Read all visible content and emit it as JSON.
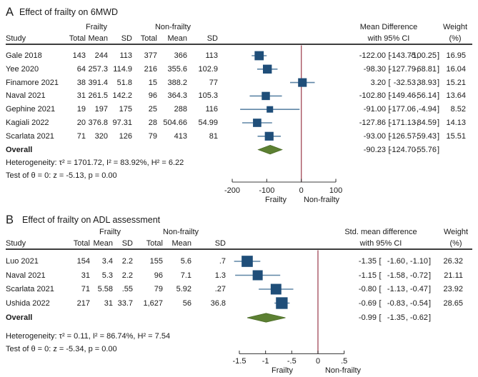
{
  "chart_data": [
    {
      "type": "forest",
      "panel_label": "A",
      "title": "Effect of frailty on 6MWD",
      "group_headers": [
        "Frailty",
        "Non-frailty"
      ],
      "columns": {
        "study": "Study",
        "total": "Total",
        "mean": "Mean",
        "sd": "SD"
      },
      "effect_header": [
        "Mean Difference",
        "with 95% CI"
      ],
      "weight_header": [
        "Weight",
        "(%)"
      ],
      "studies": [
        {
          "name": "Gale 2018",
          "g1": [
            "143",
            "244",
            "113"
          ],
          "g2": [
            "377",
            "366",
            "113"
          ],
          "effect": -122.0,
          "ci": [
            -143.75,
            -100.25
          ],
          "est": "-122.00",
          "lo": "-143.75",
          "hi": "-100.25",
          "weight": 16.95,
          "weight_text": "16.95"
        },
        {
          "name": "Yee 2020",
          "g1": [
            "64",
            "257.3",
            "114.9"
          ],
          "g2": [
            "216",
            "355.6",
            "102.9"
          ],
          "effect": -98.3,
          "ci": [
            -127.79,
            -68.81
          ],
          "est": "-98.30",
          "lo": "-127.79",
          "hi": "-68.81",
          "weight": 16.04,
          "weight_text": "16.04"
        },
        {
          "name": "Finamore 2021",
          "g1": [
            "38",
            "391.4",
            "51.8"
          ],
          "g2": [
            "15",
            "388.2",
            "77"
          ],
          "effect": 3.2,
          "ci": [
            -32.53,
            38.93
          ],
          "est": "3.20",
          "lo": "-32.53",
          "hi": "38.93",
          "weight": 15.21,
          "weight_text": "15.21"
        },
        {
          "name": "Naval 2021",
          "g1": [
            "31",
            "261.5",
            "142.2"
          ],
          "g2": [
            "96",
            "364.3",
            "105.3"
          ],
          "effect": -102.8,
          "ci": [
            -149.46,
            -56.14
          ],
          "est": "-102.80",
          "lo": "-149.46",
          "hi": "-56.14",
          "weight": 13.64,
          "weight_text": "13.64"
        },
        {
          "name": "Gephine 2021",
          "g1": [
            "19",
            "197",
            "175"
          ],
          "g2": [
            "25",
            "288",
            "116"
          ],
          "effect": -91.0,
          "ci": [
            -177.06,
            -4.94
          ],
          "est": "-91.00",
          "lo": "-177.06",
          "hi": "-4.94",
          "weight": 8.52,
          "weight_text": "8.52"
        },
        {
          "name": "Kagiali 2022",
          "g1": [
            "20",
            "376.8",
            "97.31"
          ],
          "g2": [
            "28",
            "504.66",
            "54.99"
          ],
          "effect": -127.86,
          "ci": [
            -171.13,
            -84.59
          ],
          "est": "-127.86",
          "lo": "-171.13",
          "hi": "-84.59",
          "weight": 14.13,
          "weight_text": "14.13"
        },
        {
          "name": "Scarlata 2021",
          "g1": [
            "71",
            "320",
            "126"
          ],
          "g2": [
            "79",
            "413",
            "81"
          ],
          "effect": -93.0,
          "ci": [
            -126.57,
            -59.43
          ],
          "est": "-93.00",
          "lo": "-126.57",
          "hi": "-59.43",
          "weight": 15.51,
          "weight_text": "15.51"
        }
      ],
      "overall": {
        "label": "Overall",
        "effect": -90.23,
        "ci": [
          -124.7,
          -55.76
        ],
        "est": "-90.23",
        "lo": "-124.70",
        "hi": "-55.76"
      },
      "heterogeneity": "Heterogeneity: τ² = 1701.72, I² = 83.92%, H² = 6.22",
      "test": "Test of θ = 0: z = -5.13, p = 0.00",
      "axis": {
        "ticks": [
          -200,
          -100,
          0,
          100
        ],
        "tick_labels": [
          "-200",
          "-100",
          "0",
          "100"
        ],
        "left_label": "Frailty",
        "right_label": "Non-frailty",
        "ref_line": 0
      },
      "colors": {
        "marker": "#1f4e79",
        "ci_line": "#5f86a6",
        "diamond": "#5c8032",
        "diamond_edge": "#4a6b26",
        "ref_line": "#a85563",
        "axis": "#3d3d3d",
        "rule": "#3d3d3d"
      }
    },
    {
      "type": "forest",
      "panel_label": "B",
      "title": "Effect of frailty on ADL assessment",
      "group_headers": [
        "Frailty",
        "Non-frailty"
      ],
      "columns": {
        "study": "Study",
        "total": "Total",
        "mean": "Mean",
        "sd": "SD"
      },
      "effect_header": [
        "Std. mean difference",
        "with 95% CI"
      ],
      "weight_header": [
        "Weight",
        "(%)"
      ],
      "studies": [
        {
          "name": "Luo 2021",
          "g1": [
            "154",
            "3.4",
            "2.2"
          ],
          "g2": [
            "155",
            "5.6",
            ".7"
          ],
          "effect": -1.35,
          "ci": [
            -1.6,
            -1.1
          ],
          "est": "-1.35",
          "lo": "-1.60",
          "hi": "-1.10",
          "weight": 26.32,
          "weight_text": "26.32"
        },
        {
          "name": "Naval 2021",
          "g1": [
            "31",
            "5.3",
            "2.2"
          ],
          "g2": [
            "96",
            "7.1",
            "1.3"
          ],
          "effect": -1.15,
          "ci": [
            -1.58,
            -0.72
          ],
          "est": "-1.15",
          "lo": "-1.58",
          "hi": "-0.72",
          "weight": 21.11,
          "weight_text": "21.11"
        },
        {
          "name": "Scarlata 2021",
          "g1": [
            "71",
            "5.58",
            ".55"
          ],
          "g2": [
            "79",
            "5.92",
            ".27"
          ],
          "effect": -0.8,
          "ci": [
            -1.13,
            -0.47
          ],
          "est": "-0.80",
          "lo": "-1.13",
          "hi": "-0.47",
          "weight": 23.92,
          "weight_text": "23.92"
        },
        {
          "name": "Ushida 2022",
          "g1": [
            "217",
            "31",
            "33.7"
          ],
          "g2": [
            "1,627",
            "56",
            "36.8"
          ],
          "effect": -0.69,
          "ci": [
            -0.83,
            -0.54
          ],
          "est": "-0.69",
          "lo": "-0.83",
          "hi": "-0.54",
          "weight": 28.65,
          "weight_text": "28.65"
        }
      ],
      "overall": {
        "label": "Overall",
        "effect": -0.99,
        "ci": [
          -1.35,
          -0.62
        ],
        "est": "-0.99",
        "lo": "-1.35",
        "hi": "-0.62"
      },
      "heterogeneity": "Heterogeneity: τ² = 0.11, I² = 86.74%, H² = 7.54",
      "test": "Test of θ = 0: z = -5.34, p = 0.00",
      "axis": {
        "ticks": [
          -1.5,
          -1,
          -0.5,
          0,
          0.5
        ],
        "tick_labels": [
          "-1.5",
          "-1",
          "-.5",
          "0",
          ".5"
        ],
        "left_label": "Frailty",
        "right_label": "Non-frailty",
        "ref_line": 0
      },
      "colors": {
        "marker": "#1f4e79",
        "ci_line": "#5f86a6",
        "diamond": "#5c8032",
        "diamond_edge": "#4a6b26",
        "ref_line": "#a85563",
        "axis": "#3d3d3d",
        "rule": "#3d3d3d"
      }
    }
  ]
}
